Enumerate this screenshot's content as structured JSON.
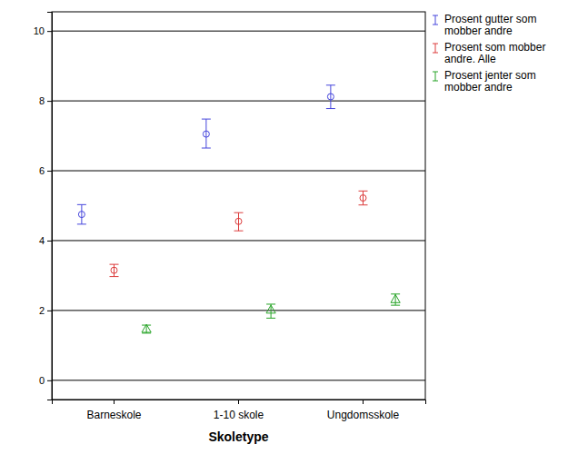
{
  "chart_data": {
    "type": "errorbar",
    "x_label": "Skoletype",
    "categories": [
      "Barneskole",
      "1-10 skole",
      "Ungdomsskole"
    ],
    "series": [
      {
        "name": "Prosent gutter som mobber andre",
        "color": "#4646dc",
        "marker": "circle",
        "values": [
          4.75,
          7.05,
          8.12
        ],
        "ci_low": [
          4.47,
          6.65,
          7.78
        ],
        "ci_high": [
          5.03,
          7.48,
          8.45
        ]
      },
      {
        "name": "Prosent som mobber andre. Alle",
        "color": "#dc3c3c",
        "marker": "circle",
        "values": [
          3.15,
          4.55,
          5.22
        ],
        "ci_low": [
          2.97,
          4.28,
          5.02
        ],
        "ci_high": [
          3.32,
          4.8,
          5.42
        ]
      },
      {
        "name": "Prosent jenter som mobber andre",
        "color": "#28a428",
        "marker": "triangle",
        "values": [
          1.45,
          2.0,
          2.3
        ],
        "ci_low": [
          1.35,
          1.78,
          2.15
        ],
        "ci_high": [
          1.58,
          2.18,
          2.47
        ]
      }
    ],
    "ylim": [
      -0.55,
      10.55
    ],
    "yticks": [
      0,
      2,
      4,
      6,
      8,
      10
    ],
    "grid": true,
    "legend": "right"
  }
}
